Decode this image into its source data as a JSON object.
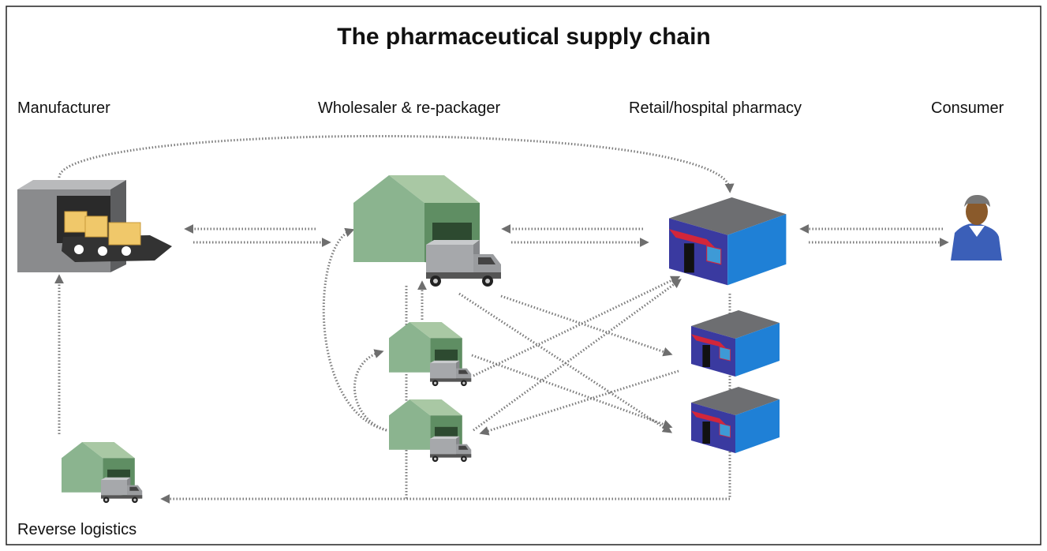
{
  "title": "The pharmaceutical supply chain",
  "nodes": [
    {
      "label": "Manufacturer"
    },
    {
      "label": "Wholesaler & re-packager"
    },
    {
      "label": "Retail/hospital pharmacy"
    },
    {
      "label": "Consumer"
    },
    {
      "label": "Reverse logistics"
    }
  ]
}
